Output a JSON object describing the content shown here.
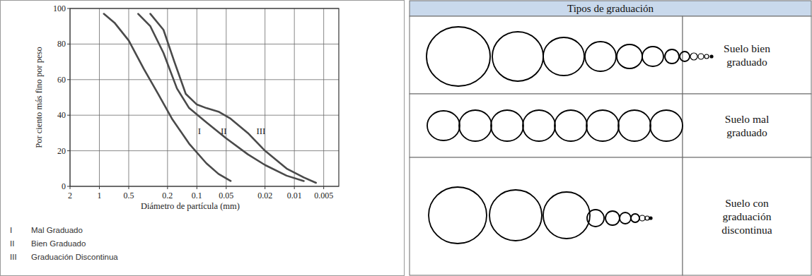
{
  "chart_data": {
    "type": "line",
    "log": "x",
    "xlabel": "Diámetro de partícula (mm)",
    "ylabel": "Por ciento más fino por peso",
    "xlim": [
      2,
      0.0035
    ],
    "xticks": [
      2,
      1,
      0.5,
      0.2,
      0.1,
      0.05,
      0.02,
      0.01,
      0.005
    ],
    "ylim": [
      0,
      100
    ],
    "yticks": [
      0,
      20,
      40,
      60,
      80,
      100
    ],
    "grid": true,
    "legend": "bottom-left",
    "series": [
      {
        "name": "Mal Graduado",
        "label": "I",
        "color": "#4a4a4a",
        "x": [
          0.9,
          0.7,
          0.5,
          0.35,
          0.25,
          0.18,
          0.12,
          0.08,
          0.06,
          0.045
        ],
        "values": [
          97,
          92,
          82,
          66,
          52,
          38,
          24,
          13,
          7,
          3
        ]
      },
      {
        "name": "Bien Graduado",
        "label": "II",
        "color": "#4a4a4a",
        "x": [
          0.4,
          0.3,
          0.22,
          0.16,
          0.12,
          0.08,
          0.05,
          0.03,
          0.02,
          0.012,
          0.008
        ],
        "values": [
          97,
          90,
          75,
          55,
          44,
          36,
          27,
          18,
          12,
          6,
          3
        ]
      },
      {
        "name": "Graduación Discontinua",
        "label": "III",
        "color": "#4a4a4a",
        "x": [
          0.3,
          0.22,
          0.17,
          0.13,
          0.1,
          0.08,
          0.06,
          0.045,
          0.03,
          0.02,
          0.012,
          0.008,
          0.006
        ],
        "values": [
          97,
          88,
          70,
          52,
          46,
          44,
          42,
          38,
          30,
          20,
          10,
          5,
          2
        ]
      }
    ],
    "annotations": [
      {
        "text": "I",
        "x": 0.094,
        "y": 31
      },
      {
        "text": "II",
        "x": 0.053,
        "y": 31
      },
      {
        "text": "III",
        "x": 0.022,
        "y": 31
      }
    ]
  },
  "table": {
    "header": "Tipos de graduación",
    "rows": [
      {
        "label": [
          "Suelo bien",
          "graduado"
        ]
      },
      {
        "label": [
          "Suelo mal",
          "graduado"
        ]
      },
      {
        "label": [
          "Suelo con",
          "graduación",
          "discontinua"
        ]
      }
    ]
  }
}
